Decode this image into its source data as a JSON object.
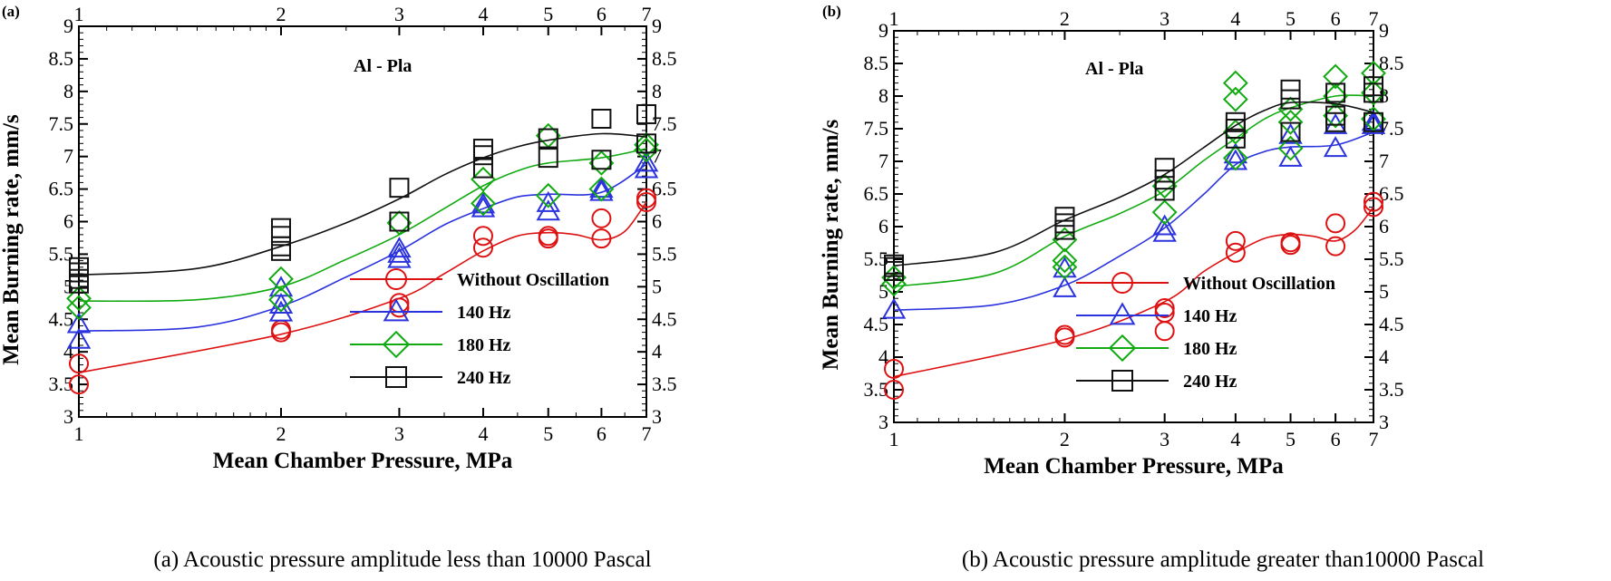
{
  "chart_data": [
    {
      "type": "line",
      "panel_tag": "(a)",
      "caption": "(a) Acoustic pressure amplitude less than 10000 Pascal",
      "annotation": "Al - Pla",
      "xlabel": "Mean Chamber Pressure, MPa",
      "ylabel": "Mean Burning rate, mm/s",
      "x_scale": "log",
      "xlim": [
        1,
        7
      ],
      "ylim": [
        3,
        9
      ],
      "x_ticks": [
        1,
        2,
        3,
        4,
        5,
        6,
        7
      ],
      "y_ticks": [
        3,
        3.5,
        4,
        4.5,
        5,
        5.5,
        6,
        6.5,
        7,
        7.5,
        8,
        8.5,
        9
      ],
      "x_tick_labels": [
        "1",
        "2",
        "3",
        "4",
        "5",
        "6",
        "7"
      ],
      "y_tick_labels": [
        "3",
        "3.5",
        "4",
        "4.5",
        "5",
        "5.5",
        "6",
        "6.5",
        "7",
        "7.5",
        "8",
        "8.5",
        "9"
      ],
      "legend_position": "lower-right",
      "series": [
        {
          "name": "Without Oscillation",
          "color": "#dd1111",
          "marker": "circle",
          "points": [
            [
              1,
              3.82
            ],
            [
              1,
              3.5
            ],
            [
              2,
              4.3
            ],
            [
              2,
              4.34
            ],
            [
              3,
              4.68
            ],
            [
              3,
              4.75
            ],
            [
              4,
              5.6
            ],
            [
              4,
              5.78
            ],
            [
              5,
              5.74
            ],
            [
              5,
              5.78
            ],
            [
              6,
              5.74
            ],
            [
              6,
              6.05
            ],
            [
              7,
              6.3
            ],
            [
              7,
              6.36
            ]
          ],
          "curve": [
            [
              1,
              3.68
            ],
            [
              2,
              4.27
            ],
            [
              3,
              4.82
            ],
            [
              3.5,
              5.2
            ],
            [
              4,
              5.55
            ],
            [
              4.5,
              5.78
            ],
            [
              5,
              5.83
            ],
            [
              5.5,
              5.8
            ],
            [
              6,
              5.72
            ],
            [
              6.5,
              5.85
            ],
            [
              7,
              6.3
            ]
          ]
        },
        {
          "name": "140 Hz",
          "color": "#2a33dd",
          "marker": "triangle",
          "points": [
            [
              1,
              4.18
            ],
            [
              1,
              4.42
            ],
            [
              2,
              4.6
            ],
            [
              2,
              4.72
            ],
            [
              2,
              4.98
            ],
            [
              3,
              5.42
            ],
            [
              3,
              5.5
            ],
            [
              3,
              5.58
            ],
            [
              4,
              6.2
            ],
            [
              4,
              6.26
            ],
            [
              5,
              6.15
            ],
            [
              5,
              6.28
            ],
            [
              6,
              6.45
            ],
            [
              6,
              6.5
            ],
            [
              7,
              6.8
            ],
            [
              7,
              6.9
            ]
          ],
          "curve": [
            [
              1,
              4.32
            ],
            [
              1.5,
              4.38
            ],
            [
              2,
              4.7
            ],
            [
              2.5,
              5.15
            ],
            [
              3,
              5.55
            ],
            [
              3.5,
              5.95
            ],
            [
              4,
              6.2
            ],
            [
              4.5,
              6.38
            ],
            [
              5,
              6.42
            ],
            [
              6,
              6.45
            ],
            [
              7,
              6.88
            ]
          ]
        },
        {
          "name": "180 Hz",
          "color": "#11aa11",
          "marker": "diamond",
          "points": [
            [
              1,
              4.68
            ],
            [
              1,
              4.82
            ],
            [
              2,
              4.8
            ],
            [
              2,
              5.12
            ],
            [
              3,
              5.98
            ],
            [
              4,
              6.28
            ],
            [
              4,
              6.65
            ],
            [
              5,
              6.4
            ],
            [
              5,
              7.32
            ],
            [
              6,
              6.5
            ],
            [
              6,
              6.9
            ],
            [
              7,
              7.1
            ],
            [
              7,
              7.18
            ]
          ],
          "curve": [
            [
              1,
              4.78
            ],
            [
              1.5,
              4.8
            ],
            [
              2,
              5.0
            ],
            [
              2.5,
              5.42
            ],
            [
              3,
              5.8
            ],
            [
              3.5,
              6.2
            ],
            [
              4,
              6.55
            ],
            [
              4.5,
              6.78
            ],
            [
              5,
              6.9
            ],
            [
              6,
              6.98
            ],
            [
              7,
              7.12
            ]
          ]
        },
        {
          "name": "240 Hz",
          "color": "#111111",
          "marker": "square",
          "points": [
            [
              1,
              5.05
            ],
            [
              1,
              5.12
            ],
            [
              1,
              5.22
            ],
            [
              1,
              5.3
            ],
            [
              2,
              5.55
            ],
            [
              2,
              5.62
            ],
            [
              2,
              5.78
            ],
            [
              2,
              5.9
            ],
            [
              3,
              6.0
            ],
            [
              3,
              6.52
            ],
            [
              4,
              6.82
            ],
            [
              4,
              7.02
            ],
            [
              4,
              7.12
            ],
            [
              5,
              6.98
            ],
            [
              5,
              7.28
            ],
            [
              6,
              6.95
            ],
            [
              6,
              7.58
            ],
            [
              7,
              7.2
            ],
            [
              7,
              7.65
            ]
          ],
          "curve": [
            [
              1,
              5.18
            ],
            [
              1.5,
              5.28
            ],
            [
              2,
              5.62
            ],
            [
              2.5,
              5.98
            ],
            [
              3,
              6.35
            ],
            [
              3.5,
              6.72
            ],
            [
              4,
              6.98
            ],
            [
              4.5,
              7.15
            ],
            [
              5,
              7.25
            ],
            [
              6,
              7.35
            ],
            [
              7,
              7.3
            ]
          ]
        }
      ]
    },
    {
      "type": "line",
      "panel_tag": "(b)",
      "caption": "(b) Acoustic pressure amplitude greater than10000 Pascal",
      "annotation": "Al - Pla",
      "xlabel": "Mean Chamber Pressure, MPa",
      "ylabel": "Mean Burning rate, mm/s",
      "x_scale": "log",
      "xlim": [
        1,
        7
      ],
      "ylim": [
        3,
        9
      ],
      "x_ticks": [
        1,
        2,
        3,
        4,
        5,
        6,
        7
      ],
      "y_ticks": [
        3,
        3.5,
        4,
        4.5,
        5,
        5.5,
        6,
        6.5,
        7,
        7.5,
        8,
        8.5,
        9
      ],
      "x_tick_labels": [
        "1",
        "2",
        "3",
        "4",
        "5",
        "6",
        "7"
      ],
      "y_tick_labels": [
        "3",
        "3.5",
        "4",
        "4.5",
        "5",
        "5.5",
        "6",
        "6.5",
        "7",
        "7.5",
        "8",
        "8.5",
        "9"
      ],
      "legend_position": "lower-right",
      "series": [
        {
          "name": "Without Oscillation",
          "color": "#dd1111",
          "marker": "circle",
          "points": [
            [
              1,
              3.82
            ],
            [
              1,
              3.5
            ],
            [
              2,
              4.3
            ],
            [
              2,
              4.34
            ],
            [
              3,
              4.4
            ],
            [
              3,
              4.68
            ],
            [
              3,
              4.75
            ],
            [
              4,
              5.6
            ],
            [
              4,
              5.78
            ],
            [
              5,
              5.72
            ],
            [
              5,
              5.76
            ],
            [
              6,
              5.7
            ],
            [
              6,
              6.05
            ],
            [
              7,
              6.3
            ],
            [
              7,
              6.38
            ]
          ],
          "curve": [
            [
              1,
              3.7
            ],
            [
              2,
              4.27
            ],
            [
              3,
              4.85
            ],
            [
              3.5,
              5.3
            ],
            [
              4,
              5.6
            ],
            [
              4.5,
              5.82
            ],
            [
              5,
              5.88
            ],
            [
              5.5,
              5.85
            ],
            [
              6,
              5.78
            ],
            [
              6.5,
              5.95
            ],
            [
              7,
              6.3
            ]
          ]
        },
        {
          "name": "140 Hz",
          "color": "#2a33dd",
          "marker": "triangle",
          "points": [
            [
              1,
              4.72
            ],
            [
              2,
              5.05
            ],
            [
              2,
              5.35
            ],
            [
              3,
              5.9
            ],
            [
              3,
              6.0
            ],
            [
              4,
              7.0
            ],
            [
              4,
              7.1
            ],
            [
              5,
              7.05
            ],
            [
              5,
              7.4
            ],
            [
              6,
              7.2
            ],
            [
              6,
              7.55
            ],
            [
              7,
              7.55
            ],
            [
              7,
              7.6
            ]
          ],
          "curve": [
            [
              1,
              4.72
            ],
            [
              1.5,
              4.8
            ],
            [
              2,
              5.1
            ],
            [
              2.5,
              5.55
            ],
            [
              3,
              5.98
            ],
            [
              3.5,
              6.48
            ],
            [
              4,
              6.95
            ],
            [
              4.5,
              7.15
            ],
            [
              5,
              7.22
            ],
            [
              6,
              7.25
            ],
            [
              7,
              7.45
            ]
          ]
        },
        {
          "name": "180 Hz",
          "color": "#11aa11",
          "marker": "diamond",
          "points": [
            [
              1,
              5.12
            ],
            [
              1,
              5.22
            ],
            [
              2,
              5.38
            ],
            [
              2,
              5.48
            ],
            [
              2,
              5.8
            ],
            [
              3,
              6.22
            ],
            [
              3,
              6.62
            ],
            [
              4,
              7.05
            ],
            [
              4,
              7.45
            ],
            [
              4,
              7.95
            ],
            [
              4,
              8.2
            ],
            [
              5,
              7.2
            ],
            [
              5,
              7.6
            ],
            [
              5,
              7.8
            ],
            [
              6,
              7.7
            ],
            [
              6,
              8.0
            ],
            [
              6,
              8.3
            ],
            [
              7,
              7.65
            ],
            [
              7,
              8.05
            ],
            [
              7,
              8.35
            ]
          ],
          "curve": [
            [
              1,
              5.08
            ],
            [
              1.5,
              5.28
            ],
            [
              2,
              5.85
            ],
            [
              2.5,
              6.2
            ],
            [
              3,
              6.55
            ],
            [
              3.5,
              7.0
            ],
            [
              4,
              7.35
            ],
            [
              4.5,
              7.65
            ],
            [
              5,
              7.82
            ],
            [
              6,
              8.0
            ],
            [
              7,
              8.0
            ]
          ]
        },
        {
          "name": "240 Hz",
          "color": "#111111",
          "marker": "square",
          "points": [
            [
              1,
              5.32
            ],
            [
              1,
              5.38
            ],
            [
              1,
              5.42
            ],
            [
              2,
              5.95
            ],
            [
              2,
              6.05
            ],
            [
              2,
              6.15
            ],
            [
              3,
              6.55
            ],
            [
              3,
              6.72
            ],
            [
              3,
              6.9
            ],
            [
              4,
              7.35
            ],
            [
              4,
              7.5
            ],
            [
              4,
              7.6
            ],
            [
              5,
              7.45
            ],
            [
              5,
              7.95
            ],
            [
              5,
              8.1
            ],
            [
              6,
              7.6
            ],
            [
              6,
              7.7
            ],
            [
              6,
              8.05
            ],
            [
              7,
              7.6
            ],
            [
              7,
              8.05
            ],
            [
              7,
              8.15
            ]
          ],
          "curve": [
            [
              1,
              5.4
            ],
            [
              1.5,
              5.6
            ],
            [
              2,
              6.1
            ],
            [
              2.5,
              6.45
            ],
            [
              3,
              6.8
            ],
            [
              3.5,
              7.2
            ],
            [
              4,
              7.55
            ],
            [
              4.5,
              7.78
            ],
            [
              5,
              7.9
            ],
            [
              6,
              7.88
            ],
            [
              7,
              7.75
            ]
          ]
        }
      ]
    }
  ]
}
